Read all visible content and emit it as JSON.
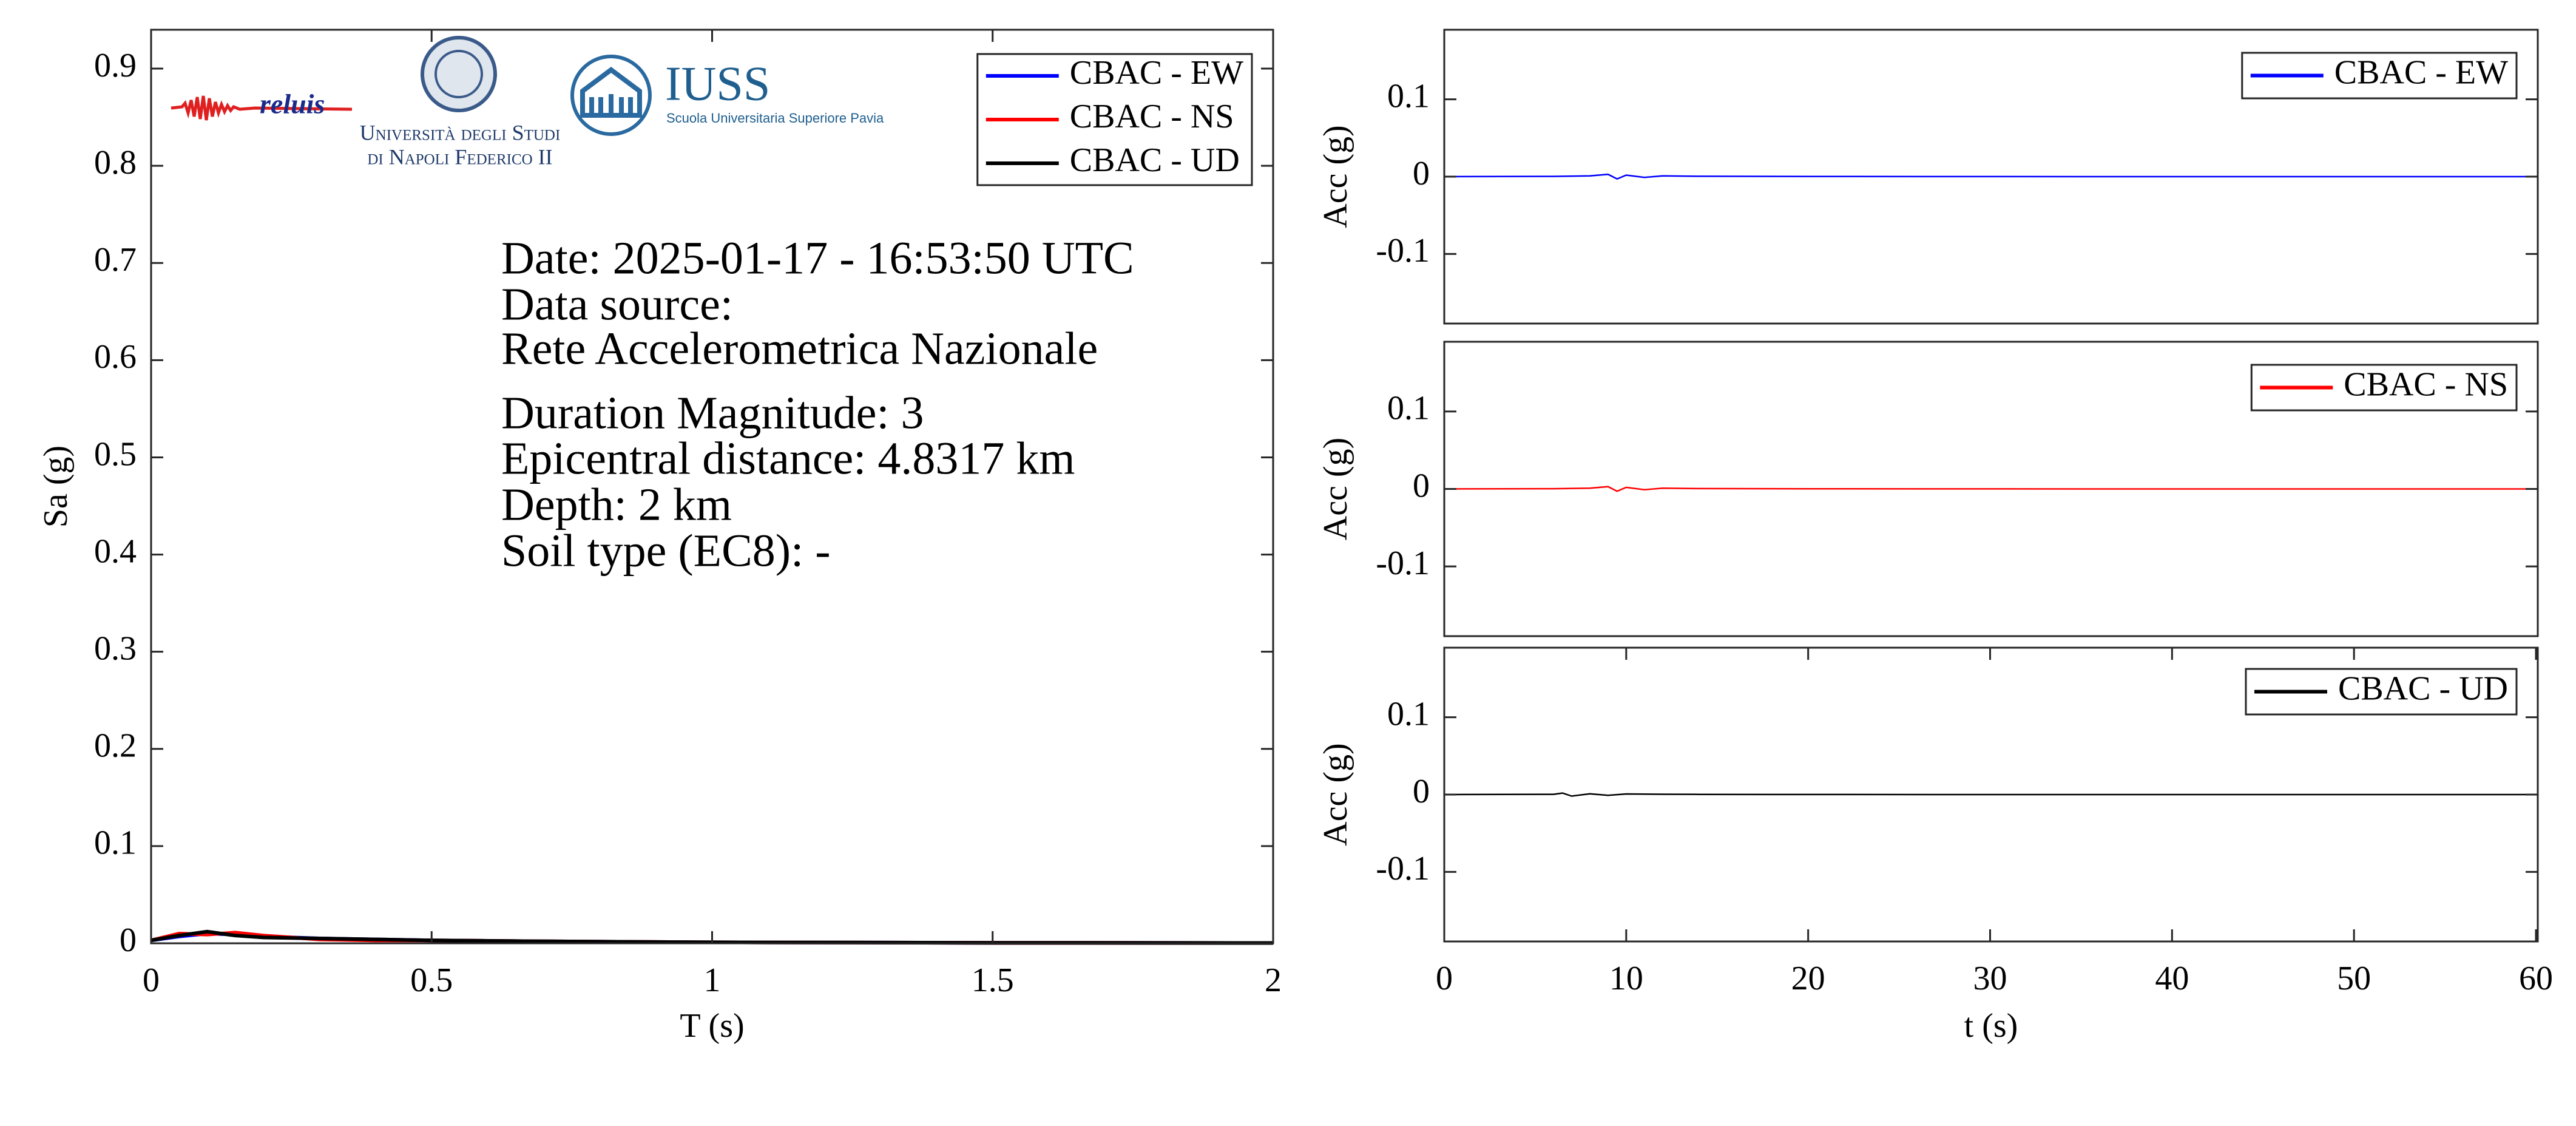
{
  "logos": {
    "reluis": "reluis",
    "unina": [
      "Università degli Studi",
      "di Napoli Federico II"
    ],
    "iuss": "IUSS",
    "iuss_subtitle": "Scuola Universitaria Superiore Pavia"
  },
  "chart_data": [
    {
      "type": "line",
      "xlabel": "T (s)",
      "ylabel": "Sa (g)",
      "xlim": [
        0,
        2
      ],
      "ylim": [
        0,
        0.94
      ],
      "xticks": [
        0,
        0.5,
        1,
        1.5,
        2
      ],
      "yticks": [
        0,
        0.1,
        0.2,
        0.3,
        0.4,
        0.5,
        0.6,
        0.7,
        0.8,
        0.9
      ],
      "annotations": [
        "Date: 2025-01-17 - 16:53:50 UTC",
        "Data source:",
        "Rete Accelerometrica Nazionale",
        "Duration Magnitude: 3",
        "Epicentral distance: 4.8317 km",
        "Depth: 2 km",
        "Soil type (EC8): -"
      ],
      "legend": "upper right",
      "x": [
        0,
        0.05,
        0.1,
        0.15,
        0.2,
        0.3,
        0.4,
        0.5,
        0.7,
        1,
        1.5,
        2
      ],
      "series": [
        {
          "name": "CBAC - EW",
          "color": "#0000ff",
          "values": [
            0.003,
            0.007,
            0.01,
            0.009,
            0.007,
            0.005,
            0.004,
            0.003,
            0.002,
            0.001,
            0.0005,
            0.0003
          ]
        },
        {
          "name": "CBAC - NS",
          "color": "#ff0000",
          "values": [
            0.003,
            0.01,
            0.009,
            0.011,
            0.008,
            0.004,
            0.003,
            0.003,
            0.002,
            0.001,
            0.0005,
            0.0003
          ]
        },
        {
          "name": "CBAC - UD",
          "color": "#000000",
          "values": [
            0.003,
            0.008,
            0.012,
            0.008,
            0.006,
            0.005,
            0.004,
            0.003,
            0.002,
            0.001,
            0.0005,
            0.0003
          ]
        }
      ]
    },
    {
      "type": "line",
      "ylabel": "Acc (g)",
      "xlim": [
        0,
        60.1
      ],
      "ylim": [
        -0.19,
        0.19
      ],
      "yticks": [
        -0.1,
        0,
        0.1
      ],
      "legend": "upper right",
      "x": [
        0,
        6,
        8,
        9,
        9.5,
        10,
        11,
        12,
        14,
        20,
        30,
        40,
        50,
        60
      ],
      "series": [
        {
          "name": "CBAC - EW",
          "color": "#0000ff",
          "values": [
            0,
            0.0003,
            0.001,
            0.003,
            -0.003,
            0.002,
            -0.001,
            0.001,
            0.0005,
            0.0002,
            0.0001,
            0,
            0,
            0
          ]
        }
      ]
    },
    {
      "type": "line",
      "ylabel": "Acc (g)",
      "xlim": [
        0,
        60.1
      ],
      "ylim": [
        -0.19,
        0.19
      ],
      "yticks": [
        -0.1,
        0,
        0.1
      ],
      "legend": "upper right",
      "x": [
        0,
        6,
        8,
        9,
        9.5,
        10,
        11,
        12,
        14,
        20,
        30,
        40,
        50,
        60
      ],
      "series": [
        {
          "name": "CBAC - NS",
          "color": "#ff0000",
          "values": [
            0,
            0.0003,
            0.001,
            0.003,
            -0.003,
            0.002,
            -0.001,
            0.001,
            0.0005,
            0.0002,
            0.0001,
            0,
            0,
            0
          ]
        }
      ]
    },
    {
      "type": "line",
      "xlabel": "t (s)",
      "ylabel": "Acc (g)",
      "xlim": [
        0,
        60.1
      ],
      "ylim": [
        -0.19,
        0.19
      ],
      "xticks": [
        0,
        10,
        20,
        30,
        40,
        50,
        60
      ],
      "yticks": [
        -0.1,
        0,
        0.1
      ],
      "legend": "upper right",
      "x": [
        0,
        6,
        6.5,
        7,
        8,
        9,
        10,
        12,
        14,
        20,
        30,
        40,
        50,
        60
      ],
      "series": [
        {
          "name": "CBAC - UD",
          "color": "#000000",
          "values": [
            0,
            0.0003,
            0.002,
            -0.002,
            0.001,
            -0.001,
            0.0008,
            0.0004,
            0.0002,
            0.0001,
            0,
            0,
            0,
            0
          ]
        }
      ]
    }
  ]
}
